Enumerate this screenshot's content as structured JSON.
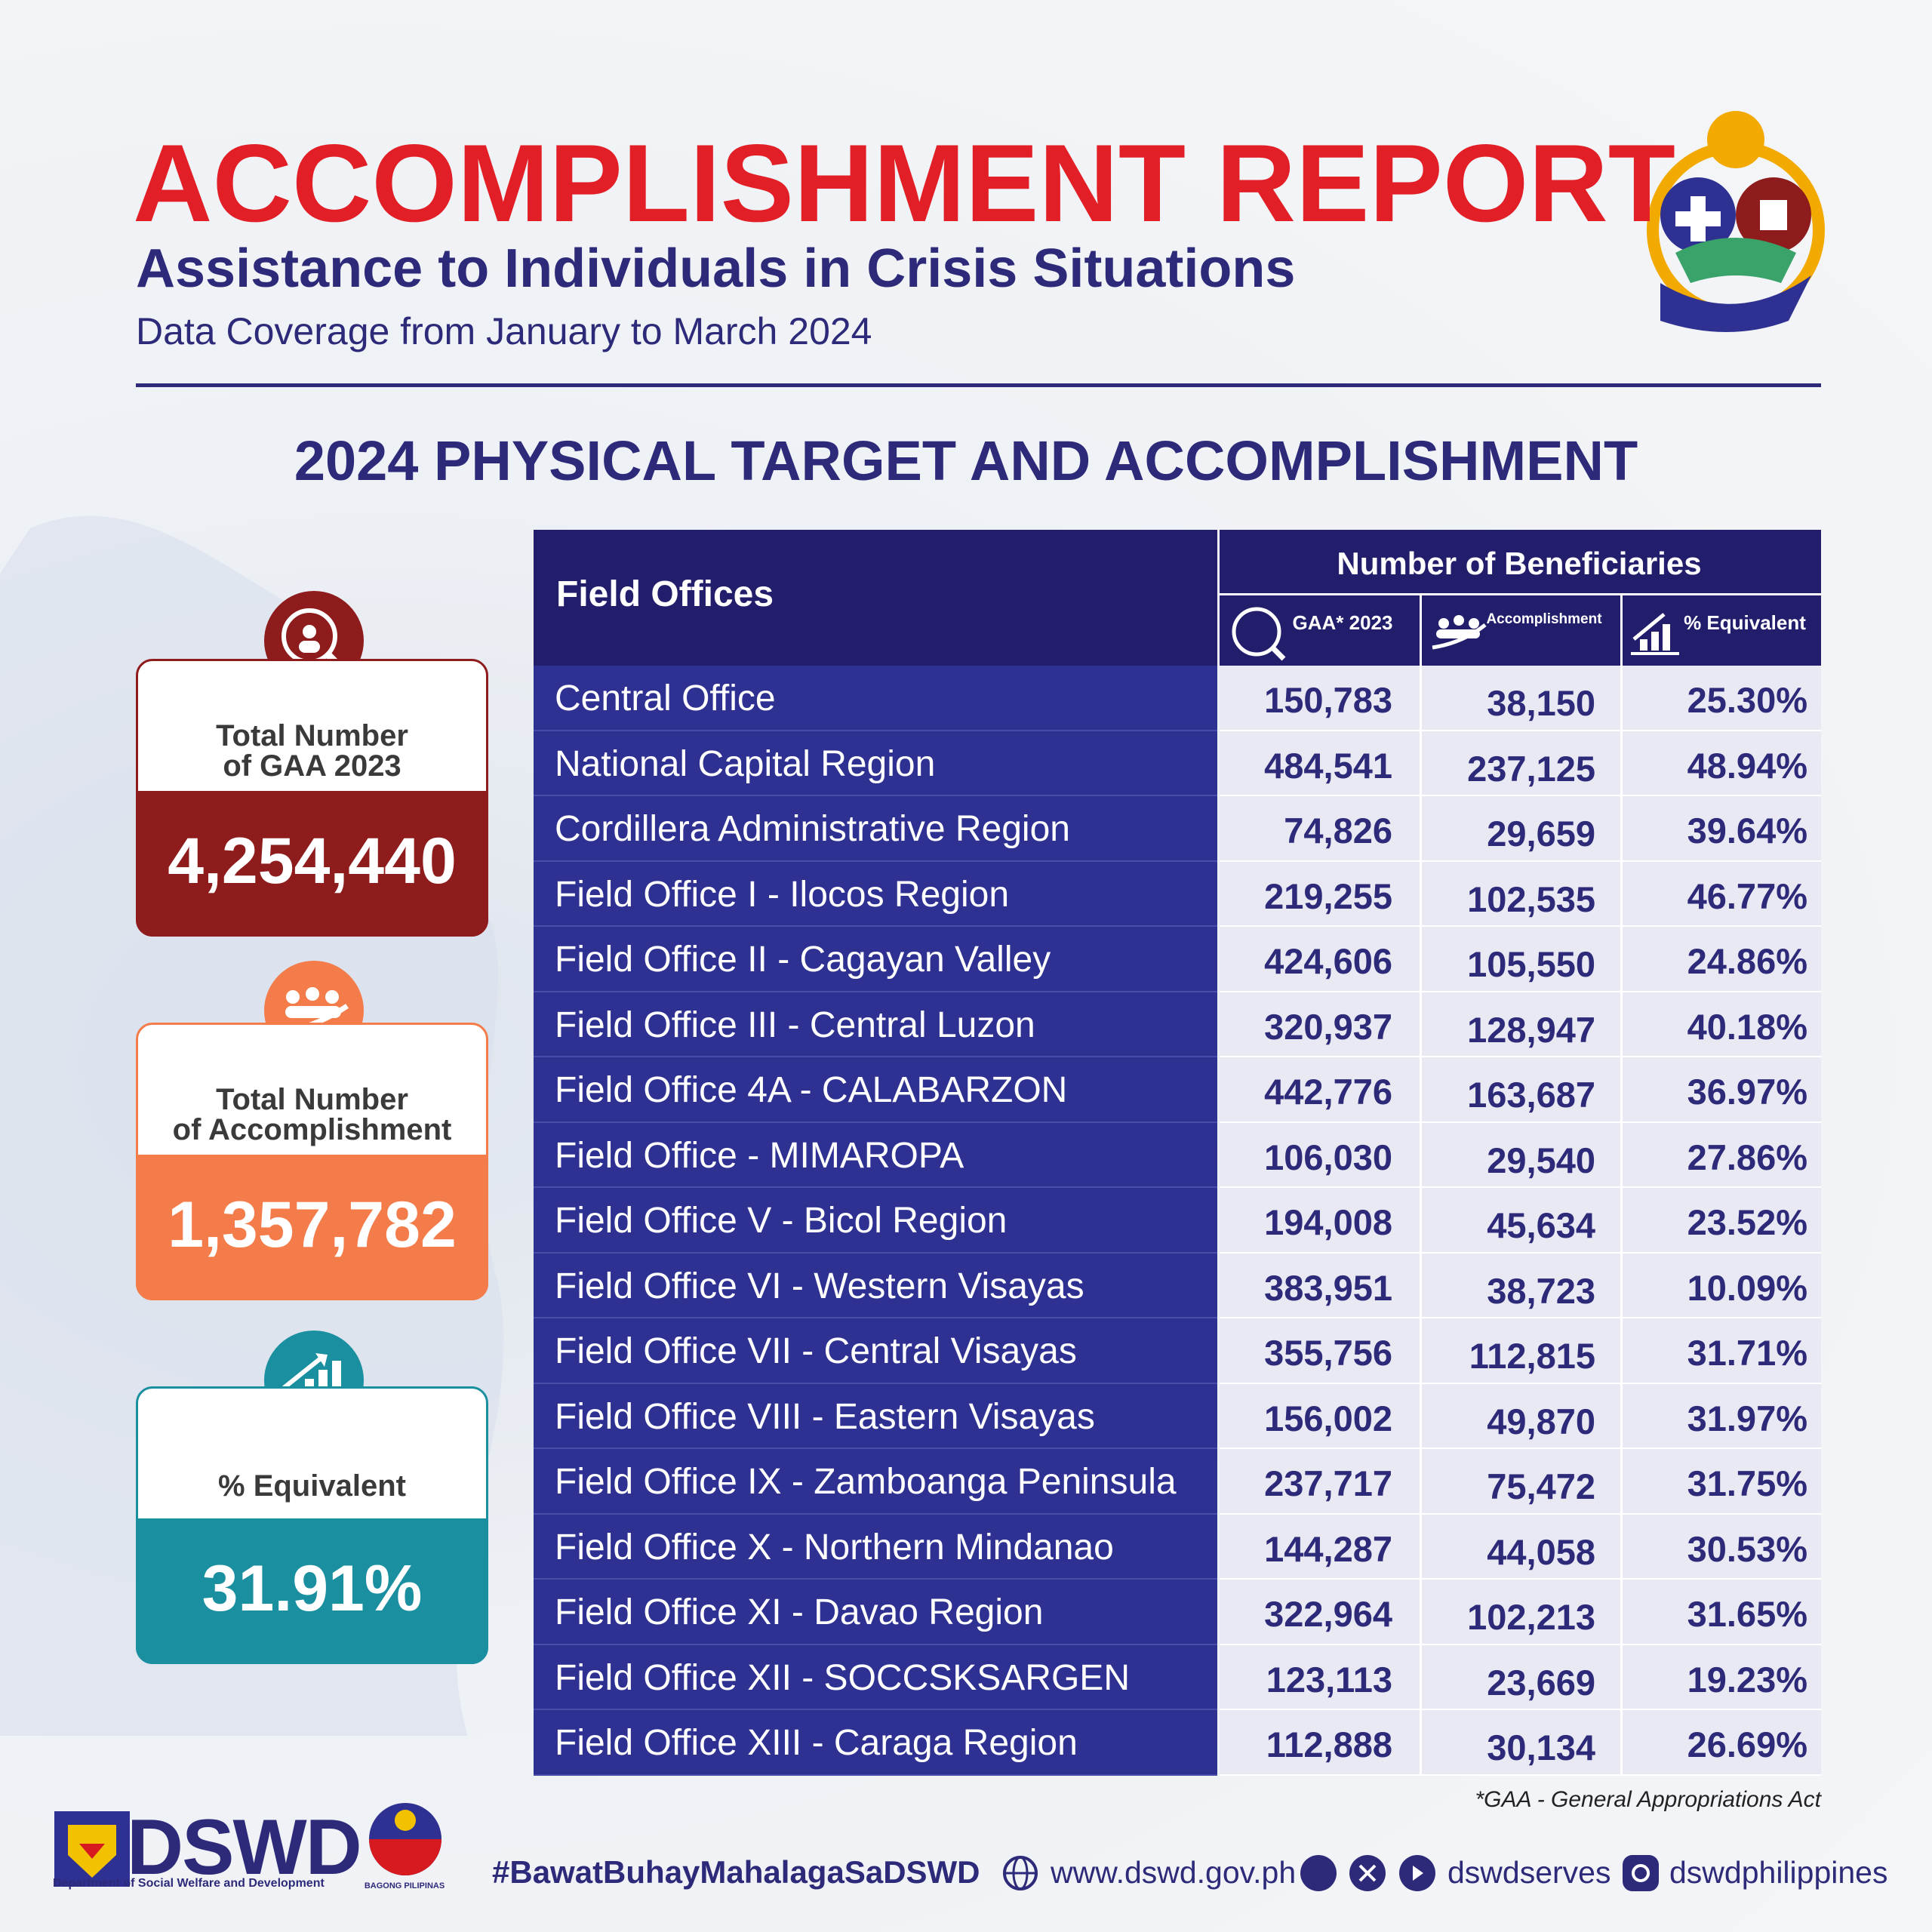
{
  "header": {
    "title": "ACCOMPLISHMENT REPORT",
    "subtitle": "Assistance to Individuals in Crisis Situations",
    "coverage": "Data Coverage from January to March 2024"
  },
  "section_title": "2024 PHYSICAL TARGET AND ACCOMPLISHMENT",
  "cards": [
    {
      "label": [
        "Total Number",
        "of GAA 2023"
      ],
      "value": "4,254,440"
    },
    {
      "label": [
        "Total Number",
        "of Accomplishment"
      ],
      "value": "1,357,782"
    },
    {
      "label": [
        "% Equivalent"
      ],
      "value": "31.91%"
    }
  ],
  "table": {
    "header": {
      "field_offices": "Field Offices",
      "group": "Number of Beneficiaries",
      "columns": [
        "GAA* 2023",
        "Accomplishment",
        "% Equivalent"
      ]
    },
    "rows": [
      [
        "Central Office",
        "150,783",
        "38,150",
        "25.30%"
      ],
      [
        "National Capital Region",
        "484,541",
        "237,125",
        "48.94%"
      ],
      [
        "Cordillera Administrative Region",
        "74,826",
        "29,659",
        "39.64%"
      ],
      [
        "Field Office I - Ilocos Region",
        "219,255",
        "102,535",
        "46.77%"
      ],
      [
        "Field Office II - Cagayan Valley",
        "424,606",
        "105,550",
        "24.86%"
      ],
      [
        "Field Office III - Central Luzon",
        "320,937",
        "128,947",
        "40.18%"
      ],
      [
        "Field Office 4A - CALABARZON",
        "442,776",
        "163,687",
        "36.97%"
      ],
      [
        "Field Office - MIMAROPA",
        "106,030",
        "29,540",
        "27.86%"
      ],
      [
        "Field Office V - Bicol Region",
        "194,008",
        "45,634",
        "23.52%"
      ],
      [
        "Field Office VI - Western Visayas",
        "383,951",
        "38,723",
        "10.09%"
      ],
      [
        "Field Office VII - Central Visayas",
        "355,756",
        "112,815",
        "31.71%"
      ],
      [
        "Field Office VIII - Eastern Visayas",
        "156,002",
        "49,870",
        "31.97%"
      ],
      [
        "Field Office IX - Zamboanga Peninsula",
        "237,717",
        "75,472",
        "31.75%"
      ],
      [
        "Field Office X - Northern Mindanao",
        "144,287",
        "44,058",
        "30.53%"
      ],
      [
        "Field Office XI - Davao Region",
        "322,964",
        "102,213",
        "31.65%"
      ],
      [
        "Field Office XII - SOCCSKSARGEN",
        "123,113",
        "23,669",
        "19.23%"
      ],
      [
        "Field Office XIII - Caraga Region",
        "112,888",
        "30,134",
        "26.69%"
      ]
    ]
  },
  "footnote": "*GAA - General Appropriations Act",
  "footer": {
    "logo": "DSWD",
    "logo_sub": "Department of Social Welfare and Development",
    "pilipinas": "BAGONG PILIPINAS",
    "hashtag": "#BawatBuhayMahalagaSaDSWD",
    "website": "www.dswd.gov.ph",
    "social": "dswdserves",
    "instagram": "dswdphilippines"
  }
}
